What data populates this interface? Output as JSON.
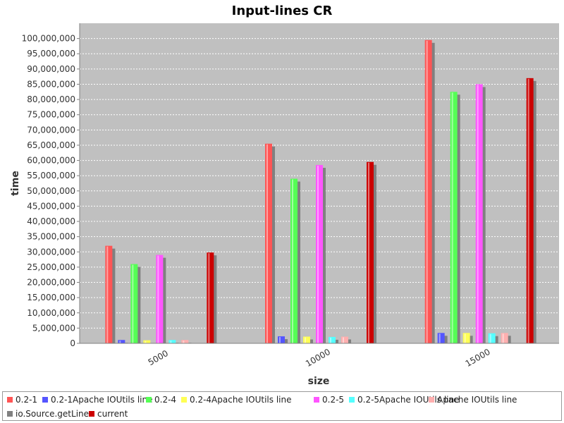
{
  "chart_data": {
    "type": "bar",
    "title": "Input-lines CR",
    "xlabel": "size",
    "ylabel": "time",
    "categories": [
      "5000",
      "10000",
      "15000"
    ],
    "ylim": [
      0,
      105000000
    ],
    "yticks": [
      0,
      5000000,
      10000000,
      15000000,
      20000000,
      25000000,
      30000000,
      35000000,
      40000000,
      45000000,
      50000000,
      55000000,
      60000000,
      65000000,
      70000000,
      75000000,
      80000000,
      85000000,
      90000000,
      95000000,
      100000000
    ],
    "ytick_labels": [
      "0",
      "5,000,000",
      "10,000,000",
      "15,000,000",
      "20,000,000",
      "25,000,000",
      "30,000,000",
      "35,000,000",
      "40,000,000",
      "45,000,000",
      "50,000,000",
      "55,000,000",
      "60,000,000",
      "65,000,000",
      "70,000,000",
      "75,000,000",
      "80,000,000",
      "85,000,000",
      "90,000,000",
      "95,000,000",
      "100,000,000"
    ],
    "grid": true,
    "legend_position": "bottom",
    "plot_background": "#c0c0c0",
    "series": [
      {
        "name": "0.2-1",
        "color": "#ff5555",
        "values": [
          32000000,
          65500000,
          99500000
        ]
      },
      {
        "name": "0.2-1Apache IOUtils line",
        "color": "#5555ff",
        "values": [
          1100000,
          2300000,
          3400000
        ]
      },
      {
        "name": "0.2-4",
        "color": "#55ff55",
        "values": [
          26000000,
          54000000,
          82500000
        ]
      },
      {
        "name": "0.2-4Apache IOUtils line",
        "color": "#ffff55",
        "values": [
          1000000,
          2200000,
          3400000
        ]
      },
      {
        "name": "0.2-5",
        "color": "#ff55ff",
        "values": [
          29000000,
          58500000,
          85000000
        ]
      },
      {
        "name": "0.2-5Apache IOUtils line",
        "color": "#55ffff",
        "values": [
          1100000,
          2100000,
          3300000
        ]
      },
      {
        "name": "Apache IOUtils line",
        "color": "#ffafaf",
        "values": [
          1100000,
          2200000,
          3400000
        ]
      },
      {
        "name": "io.Source.getLines",
        "color": "#808080",
        "values": [
          0,
          0,
          0
        ]
      },
      {
        "name": "current",
        "color": "#cc0000",
        "values": [
          29800000,
          59500000,
          87000000
        ]
      }
    ]
  }
}
